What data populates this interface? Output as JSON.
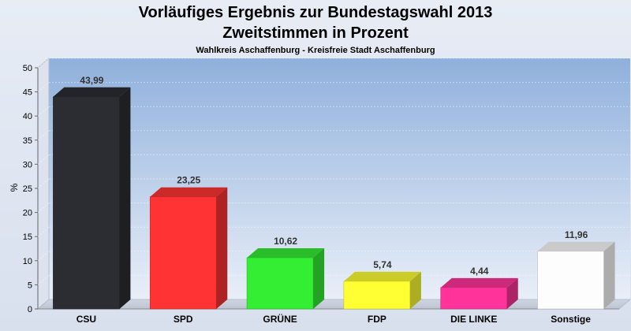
{
  "chart_data": {
    "type": "bar",
    "title": [
      "Vorläufiges Ergebnis zur Bundestagswahl 2013",
      "Zweitstimmen in Prozent"
    ],
    "subtitle": "Wahlkreis Aschaffenburg - Kreisfreie Stadt Aschaffenburg",
    "ylabel": "%",
    "xlabel": "",
    "ylim": [
      0,
      50
    ],
    "yticks": [
      0,
      5,
      10,
      15,
      20,
      25,
      30,
      35,
      40,
      45,
      50
    ],
    "categories": [
      "CSU",
      "SPD",
      "GRÜNE",
      "FDP",
      "DIE LINKE",
      "Sonstige"
    ],
    "values": [
      43.99,
      23.25,
      10.62,
      5.74,
      4.44,
      11.96
    ],
    "value_labels": [
      "43,99",
      "23,25",
      "10,62",
      "5,74",
      "4,44",
      "11,96"
    ],
    "colors": [
      "#2b2d33",
      "#ff3333",
      "#33ee33",
      "#ffff33",
      "#ff3399",
      "#fdfdfd"
    ],
    "grid": true,
    "legend": "none"
  }
}
